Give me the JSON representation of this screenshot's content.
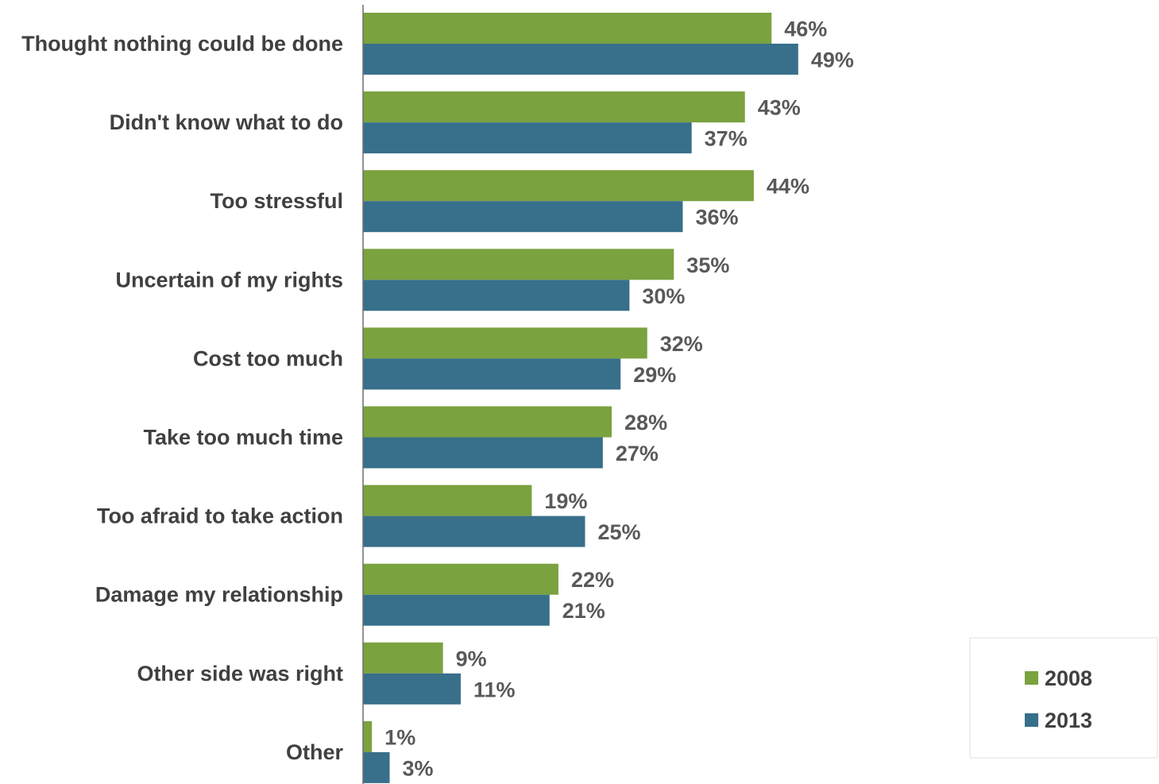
{
  "chart_data": {
    "type": "bar",
    "orientation": "horizontal",
    "title": "",
    "xlabel": "",
    "ylabel": "",
    "xlim": [
      0,
      51
    ],
    "grid": false,
    "legend_position": "bottom-right",
    "categories": [
      "Thought nothing could be done",
      "Didn't know what to do",
      "Too stressful",
      "Uncertain of my rights",
      "Cost too much",
      "Take too much time",
      "Too afraid to take action",
      "Damage my relationship",
      "Other side was right",
      "Other"
    ],
    "series": [
      {
        "name": "2008",
        "color": "#7aa23f",
        "values": [
          46,
          43,
          44,
          35,
          32,
          28,
          19,
          22,
          9,
          1
        ],
        "labels": [
          "46%",
          "43%",
          "44%",
          "35%",
          "32%",
          "28%",
          "19%",
          "22%",
          "9%",
          "1%"
        ]
      },
      {
        "name": "2013",
        "color": "#386f8a",
        "values": [
          49,
          37,
          36,
          30,
          29,
          27,
          25,
          21,
          11,
          3
        ],
        "labels": [
          "49%",
          "37%",
          "36%",
          "30%",
          "29%",
          "27%",
          "25%",
          "21%",
          "11%",
          "3%"
        ]
      }
    ]
  }
}
